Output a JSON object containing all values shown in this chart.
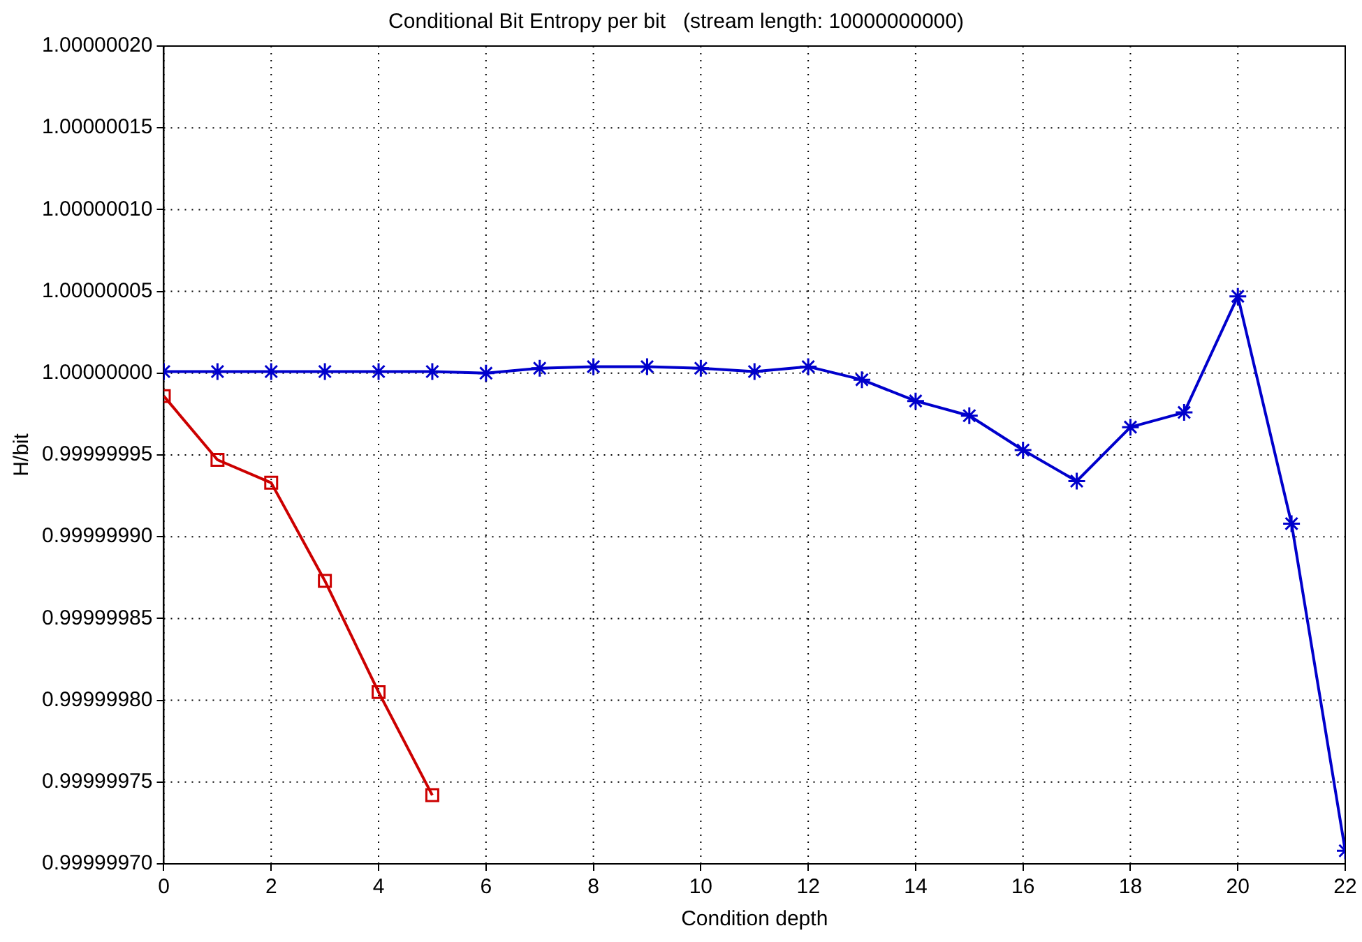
{
  "chart_data": {
    "type": "line",
    "title": "Conditional Bit Entropy per bit   (stream length: 10000000000)",
    "xlabel": "Condition depth",
    "ylabel": "H/bit",
    "x": [
      0,
      1,
      2,
      3,
      4,
      5,
      6,
      7,
      8,
      9,
      10,
      11,
      12,
      13,
      14,
      15,
      16,
      17,
      18,
      19,
      20,
      21,
      22
    ],
    "series": [
      {
        "color": "#0000cc",
        "marker": "cross",
        "values": [
          1.000000001,
          1.000000001,
          1.000000001,
          1.000000001,
          1.000000001,
          1.000000001,
          1.0,
          1.000000003,
          1.000000004,
          1.000000004,
          1.000000003,
          1.000000001,
          1.000000004,
          0.999999996,
          0.999999983,
          0.999999974,
          0.999999953,
          0.999999934,
          0.999999967,
          0.999999976,
          1.000000047,
          0.999999908,
          0.999999708
        ]
      },
      {
        "color": "#cc0000",
        "marker": "square",
        "values": [
          0.999999986,
          0.999999947,
          0.999999933,
          0.999999873,
          0.999999805,
          0.999999742,
          null,
          null,
          null,
          null,
          null,
          null,
          null,
          null,
          null,
          null,
          null,
          null,
          null,
          null,
          null,
          null,
          null
        ]
      }
    ],
    "xlim": [
      0,
      22
    ],
    "xticks": [
      0,
      2,
      4,
      6,
      8,
      10,
      12,
      14,
      16,
      18,
      20,
      22
    ],
    "ylim": [
      0.9999997,
      1.0000002
    ],
    "yticks": [
      {
        "value": 0.9999997,
        "label": "0.99999970"
      },
      {
        "value": 0.99999975,
        "label": "0.99999975"
      },
      {
        "value": 0.9999998,
        "label": "0.99999980"
      },
      {
        "value": 0.99999985,
        "label": "0.99999985"
      },
      {
        "value": 0.9999999,
        "label": "0.99999990"
      },
      {
        "value": 0.99999995,
        "label": "0.99999995"
      },
      {
        "value": 1.0,
        "label": "1.00000000"
      },
      {
        "value": 1.00000005,
        "label": "1.00000005"
      },
      {
        "value": 1.0000001,
        "label": "1.00000010"
      },
      {
        "value": 1.00000015,
        "label": "1.00000015"
      },
      {
        "value": 1.0000002,
        "label": "1.00000020"
      }
    ],
    "grid": true,
    "legend": false,
    "line_style": "solid"
  }
}
